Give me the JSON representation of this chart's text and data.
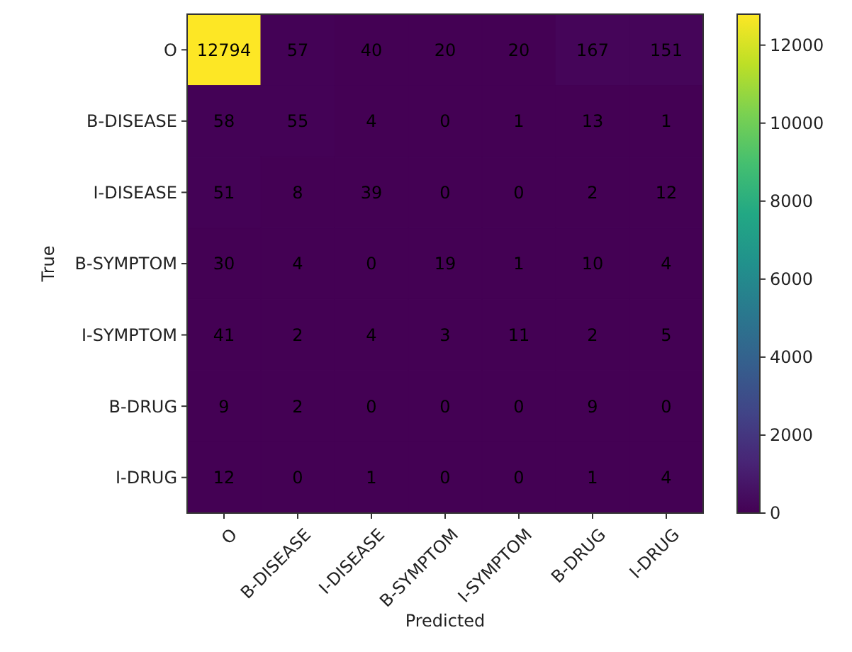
{
  "chart_data": {
    "type": "heatmap",
    "xlabel": "Predicted",
    "ylabel": "True",
    "categories": [
      "O",
      "B-DISEASE",
      "I-DISEASE",
      "B-SYMPTOM",
      "I-SYMPTOM",
      "B-DRUG",
      "I-DRUG"
    ],
    "y_categories": [
      "O",
      "B-DISEASE",
      "I-DISEASE",
      "B-SYMPTOM",
      "I-SYMPTOM",
      "B-DRUG",
      "I-DRUG"
    ],
    "cells": [
      [
        12794,
        57,
        40,
        20,
        20,
        167,
        151
      ],
      [
        58,
        55,
        4,
        0,
        1,
        13,
        1
      ],
      [
        51,
        8,
        39,
        0,
        0,
        2,
        12
      ],
      [
        30,
        4,
        0,
        19,
        1,
        10,
        4
      ],
      [
        41,
        2,
        4,
        3,
        11,
        2,
        5
      ],
      [
        9,
        2,
        0,
        0,
        0,
        9,
        0
      ],
      [
        12,
        0,
        1,
        0,
        0,
        1,
        4
      ]
    ],
    "clim": [
      0,
      12794
    ],
    "cticks": [
      0,
      2000,
      4000,
      6000,
      8000,
      10000,
      12000
    ],
    "data_labels": true
  }
}
